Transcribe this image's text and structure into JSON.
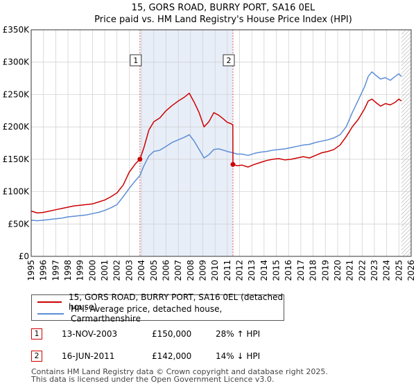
{
  "chart_data": {
    "type": "line",
    "title": "15, GORS ROAD, BURRY PORT, SA16 0EL",
    "subtitle": "Price paid vs. HM Land Registry's House Price Index (HPI)",
    "xlim": [
      1995,
      2026
    ],
    "ylim": [
      0,
      350000
    ],
    "y_ticks": [
      0,
      50000,
      100000,
      150000,
      200000,
      250000,
      300000,
      350000
    ],
    "y_tick_labels": [
      "£0",
      "£50K",
      "£100K",
      "£150K",
      "£200K",
      "£250K",
      "£300K",
      "£350K"
    ],
    "x_ticks": [
      1995,
      1996,
      1997,
      1998,
      1999,
      2000,
      2001,
      2002,
      2003,
      2004,
      2005,
      2006,
      2007,
      2008,
      2009,
      2010,
      2011,
      2012,
      2013,
      2014,
      2015,
      2016,
      2017,
      2018,
      2019,
      2020,
      2021,
      2022,
      2023,
      2024,
      2025,
      2026
    ],
    "x_tick_labels": [
      "1995",
      "1996",
      "1997",
      "1998",
      "1999",
      "2000",
      "2001",
      "2002",
      "2003",
      "2004",
      "2005",
      "2006",
      "2007",
      "2008",
      "2009",
      "2010",
      "2011",
      "2012",
      "2013",
      "2014",
      "2015",
      "2016",
      "2017",
      "2018",
      "2019",
      "2020",
      "2021",
      "2022",
      "2023",
      "2024",
      "2025",
      "2026"
    ],
    "shaded_range": [
      2003.87,
      2011.46
    ],
    "hatched_after": 2025.2,
    "series": [
      {
        "name": "15, GORS ROAD, BURRY PORT, SA16 0EL (detached house)",
        "color": "#cc0000",
        "x": [
          1995.0,
          1995.5,
          1996.0,
          1996.5,
          1997.0,
          1997.5,
          1998.0,
          1998.5,
          1999.0,
          1999.5,
          2000.0,
          2000.5,
          2001.0,
          2001.5,
          2002.0,
          2002.5,
          2003.0,
          2003.5,
          2003.87,
          2004.2,
          2004.6,
          2005.0,
          2005.5,
          2006.0,
          2006.5,
          2007.0,
          2007.5,
          2007.9,
          2008.3,
          2008.7,
          2009.1,
          2009.5,
          2009.9,
          2010.3,
          2010.7,
          2011.0,
          2011.3,
          2011.45,
          2011.46,
          2011.8,
          2012.2,
          2012.7,
          2013.2,
          2013.7,
          2014.2,
          2014.7,
          2015.2,
          2015.7,
          2016.2,
          2016.7,
          2017.2,
          2017.7,
          2018.2,
          2018.7,
          2019.2,
          2019.7,
          2020.2,
          2020.7,
          2021.2,
          2021.7,
          2022.2,
          2022.5,
          2022.8,
          2023.1,
          2023.5,
          2023.9,
          2024.3,
          2024.7,
          2025.0,
          2025.2
        ],
        "values": [
          70000,
          67000,
          68000,
          70000,
          72000,
          74000,
          76000,
          78000,
          79000,
          80000,
          81000,
          84000,
          87000,
          92000,
          98000,
          110000,
          130000,
          143000,
          150000,
          168000,
          195000,
          208000,
          214000,
          225000,
          233000,
          240000,
          246000,
          252000,
          238000,
          222000,
          200000,
          208000,
          222000,
          218000,
          212000,
          207000,
          205000,
          203000,
          142000,
          140000,
          141000,
          138000,
          142000,
          145000,
          148000,
          150000,
          151000,
          149000,
          150000,
          152000,
          154000,
          152000,
          156000,
          160000,
          162000,
          165000,
          172000,
          185000,
          200000,
          212000,
          228000,
          240000,
          243000,
          238000,
          232000,
          236000,
          234000,
          238000,
          243000,
          240000
        ]
      },
      {
        "name": "HPI: Average price, detached house, Carmarthenshire",
        "color": "#5b8ed6",
        "x": [
          1995.0,
          1995.5,
          1996.0,
          1996.5,
          1997.0,
          1997.5,
          1998.0,
          1998.5,
          1999.0,
          1999.5,
          2000.0,
          2000.5,
          2001.0,
          2001.5,
          2002.0,
          2002.5,
          2003.0,
          2003.5,
          2003.87,
          2004.2,
          2004.6,
          2005.0,
          2005.5,
          2006.0,
          2006.5,
          2007.0,
          2007.5,
          2007.9,
          2008.3,
          2008.7,
          2009.1,
          2009.5,
          2009.9,
          2010.3,
          2010.7,
          2011.0,
          2011.46,
          2011.8,
          2012.2,
          2012.7,
          2013.2,
          2013.7,
          2014.2,
          2014.7,
          2015.2,
          2015.7,
          2016.2,
          2016.7,
          2017.2,
          2017.7,
          2018.2,
          2018.7,
          2019.2,
          2019.7,
          2020.2,
          2020.7,
          2021.2,
          2021.7,
          2022.2,
          2022.5,
          2022.8,
          2023.1,
          2023.5,
          2023.9,
          2024.3,
          2024.7,
          2025.0,
          2025.2
        ],
        "values": [
          56000,
          55000,
          56000,
          57000,
          58000,
          59000,
          61000,
          62000,
          63000,
          64000,
          66000,
          68000,
          71000,
          75000,
          80000,
          92000,
          105000,
          117000,
          125000,
          140000,
          155000,
          162000,
          164000,
          170000,
          176000,
          180000,
          184000,
          188000,
          178000,
          165000,
          152000,
          157000,
          165000,
          166000,
          164000,
          162000,
          160000,
          158000,
          158000,
          156000,
          159000,
          161000,
          162000,
          164000,
          165000,
          166000,
          168000,
          170000,
          172000,
          173000,
          176000,
          178000,
          180000,
          183000,
          188000,
          200000,
          222000,
          242000,
          262000,
          278000,
          285000,
          280000,
          274000,
          276000,
          272000,
          278000,
          282000,
          278000
        ]
      }
    ],
    "markers": [
      {
        "label": "1",
        "x": 2003.87,
        "value": 150000,
        "date": "13-NOV-2003",
        "price": "£150,000",
        "hpi": "28% ↑ HPI"
      },
      {
        "label": "2",
        "x": 2011.46,
        "value": 142000,
        "date": "16-JUN-2011",
        "price": "£142,000",
        "hpi": "14% ↓ HPI"
      }
    ],
    "legend_position": "bottom-left"
  },
  "footer": {
    "line1": "Contains HM Land Registry data © Crown copyright and database right 2025.",
    "line2": "This data is licensed under the Open Government Licence v3.0."
  },
  "colors": {
    "price": "#cc0000",
    "hpi": "#5b8ed6",
    "shade": "#e8eef8",
    "grid": "#cccccc"
  }
}
